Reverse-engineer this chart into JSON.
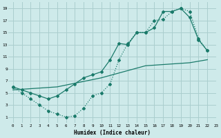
{
  "xlabel": "Humidex (Indice chaleur)",
  "bg_color": "#ceeaea",
  "grid_color": "#aacece",
  "line_color": "#1a7a6a",
  "xlim": [
    -0.5,
    23
  ],
  "ylim": [
    0,
    20
  ],
  "xticks": [
    0,
    1,
    2,
    3,
    4,
    5,
    6,
    7,
    8,
    9,
    10,
    11,
    12,
    13,
    14,
    15,
    16,
    17,
    18,
    19,
    20,
    21,
    22,
    23
  ],
  "yticks": [
    1,
    3,
    5,
    7,
    9,
    11,
    13,
    15,
    17,
    19
  ],
  "line1_x": [
    0,
    1,
    2,
    3,
    4,
    5,
    6,
    7,
    8,
    9,
    10,
    11,
    12,
    13,
    14,
    15,
    16,
    17,
    18,
    19,
    20,
    21,
    22
  ],
  "line1_y": [
    6,
    5,
    4,
    3,
    2,
    1.5,
    1,
    1.2,
    2.5,
    4.5,
    5,
    6.5,
    10.5,
    13.2,
    15,
    15,
    17,
    17.2,
    18.5,
    19,
    18.5,
    14,
    12
  ],
  "line2_x": [
    0,
    1,
    2,
    3,
    4,
    5,
    6,
    7,
    8,
    9,
    10,
    11,
    12,
    13,
    14,
    15,
    16,
    17,
    18,
    19,
    20,
    21,
    22
  ],
  "line2_y": [
    6,
    5.5,
    5,
    4.5,
    4,
    4.5,
    5.5,
    6.5,
    7.5,
    8,
    8.5,
    10.5,
    13.2,
    13,
    15,
    15,
    15.8,
    18.5,
    18.5,
    19,
    17.5,
    13.8,
    12
  ],
  "line3_x": [
    0,
    5,
    10,
    15,
    20,
    22
  ],
  "line3_y": [
    5.5,
    6,
    7.5,
    9.5,
    10,
    10.5
  ]
}
